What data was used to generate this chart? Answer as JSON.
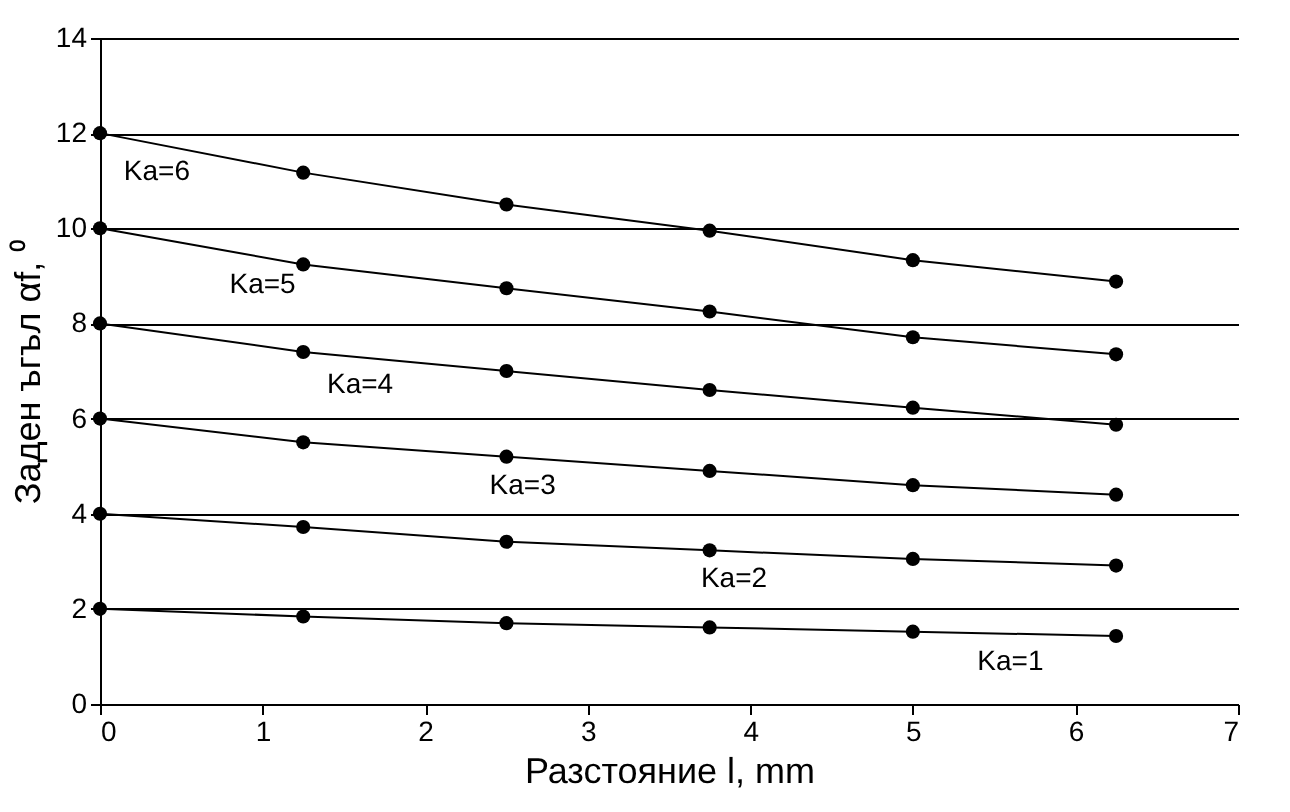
{
  "chart_data": {
    "type": "line",
    "xlabel": "Разстояние l, mm",
    "ylabel": "Заден ъгъл αf, ⁰",
    "x": [
      0,
      1.25,
      2.5,
      3.75,
      5,
      6.25
    ],
    "series": [
      {
        "name": "Ka=1",
        "color": "#000000",
        "values": [
          2,
          1.84,
          1.7,
          1.61,
          1.52,
          1.43
        ]
      },
      {
        "name": "Ka=2",
        "color": "#000000",
        "values": [
          4,
          3.72,
          3.41,
          3.23,
          3.05,
          2.91
        ]
      },
      {
        "name": "Ka=3",
        "color": "#000000",
        "values": [
          6,
          5.5,
          5.2,
          4.9,
          4.6,
          4.4
        ]
      },
      {
        "name": "Ka=4",
        "color": "#000000",
        "values": [
          8,
          7.4,
          7.0,
          6.6,
          6.23,
          5.87
        ]
      },
      {
        "name": "Ka=5",
        "color": "#000000",
        "values": [
          10,
          9.24,
          8.74,
          8.25,
          7.71,
          7.35
        ]
      },
      {
        "name": "Ka=6",
        "color": "#000000",
        "values": [
          12,
          11.17,
          10.5,
          9.95,
          9.33,
          8.88
        ]
      }
    ],
    "xlim": [
      0,
      7
    ],
    "xticks": [
      0,
      1,
      2,
      3,
      4,
      5,
      6,
      7
    ],
    "ylim": [
      0,
      14
    ],
    "yticks": [
      0,
      2,
      4,
      6,
      8,
      10,
      12,
      14
    ],
    "grid": "y",
    "legend": false,
    "marker": "circle",
    "line_style": "solid"
  }
}
